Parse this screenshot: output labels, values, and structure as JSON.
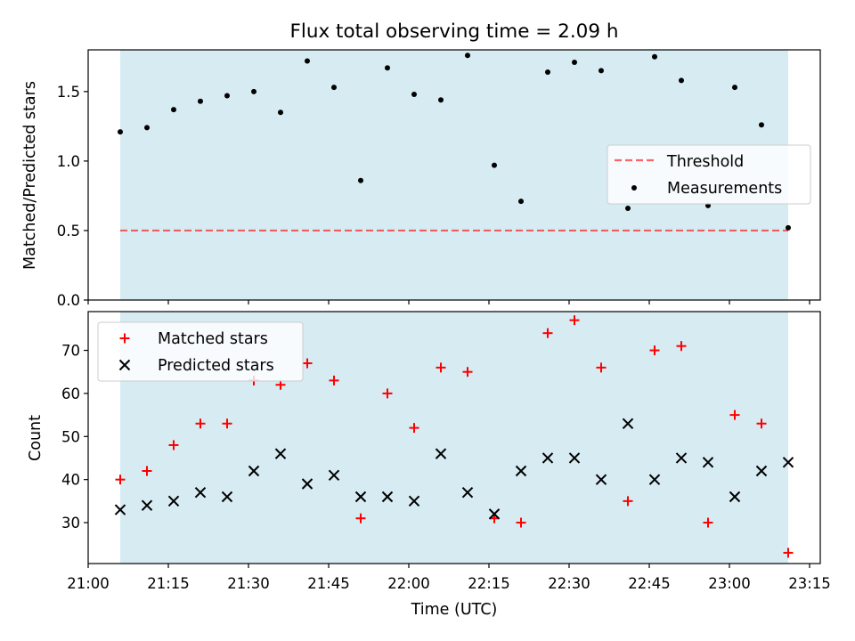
{
  "title": "Flux total observing time = 2.09 h",
  "colors": {
    "shade": "#add8e6",
    "threshold": "#ff0000",
    "measurements": "#000000",
    "matched": "#ff0000",
    "predicted": "#000000"
  },
  "chart_data": [
    {
      "type": "scatter",
      "panel": "top",
      "title": "Flux total observing time = 2.09 h",
      "ylabel": "Matched/Predicted stars",
      "ylim": [
        0.0,
        1.8
      ],
      "yticks": [
        0.0,
        0.5,
        1.0,
        1.5
      ],
      "ytick_labels": [
        "0.0",
        "0.5",
        "1.0",
        "1.5"
      ],
      "legend_position": "center-right",
      "shaded_span": {
        "start": "21:06",
        "end": "23:11"
      },
      "threshold": {
        "name": "Threshold",
        "value": 0.5,
        "style": "dashed"
      },
      "series": [
        {
          "name": "Measurements",
          "marker": "dot",
          "x": [
            "21:06",
            "21:11",
            "21:16",
            "21:21",
            "21:26",
            "21:31",
            "21:36",
            "21:41",
            "21:46",
            "21:51",
            "21:56",
            "22:01",
            "22:06",
            "22:11",
            "22:16",
            "22:21",
            "22:26",
            "22:31",
            "22:36",
            "22:41",
            "22:46",
            "22:51",
            "22:56",
            "23:01",
            "23:06",
            "23:11"
          ],
          "y": [
            1.21,
            1.24,
            1.37,
            1.43,
            1.47,
            1.5,
            1.35,
            1.72,
            1.53,
            0.86,
            1.67,
            1.48,
            1.44,
            1.76,
            0.97,
            0.71,
            1.64,
            1.71,
            1.65,
            0.66,
            1.75,
            1.58,
            0.68,
            1.53,
            1.26,
            0.52
          ]
        }
      ]
    },
    {
      "type": "scatter",
      "panel": "bottom",
      "xlabel": "Time (UTC)",
      "ylabel": "Count",
      "ylim": [
        20.5,
        79
      ],
      "yticks": [
        30,
        40,
        50,
        60,
        70
      ],
      "ytick_labels": [
        "30",
        "40",
        "50",
        "60",
        "70"
      ],
      "xlim": [
        "21:00",
        "23:17"
      ],
      "xticks": [
        "21:00",
        "21:15",
        "21:30",
        "21:45",
        "22:00",
        "22:15",
        "22:30",
        "22:45",
        "23:00",
        "23:15"
      ],
      "legend_position": "top-left",
      "shaded_span": {
        "start": "21:06",
        "end": "23:11"
      },
      "series": [
        {
          "name": "Matched stars",
          "marker": "plus",
          "x": [
            "21:06",
            "21:11",
            "21:16",
            "21:21",
            "21:26",
            "21:31",
            "21:36",
            "21:41",
            "21:46",
            "21:51",
            "21:56",
            "22:01",
            "22:06",
            "22:11",
            "22:16",
            "22:21",
            "22:26",
            "22:31",
            "22:36",
            "22:41",
            "22:46",
            "22:51",
            "22:56",
            "23:01",
            "23:06",
            "23:11"
          ],
          "y": [
            40,
            42,
            48,
            53,
            53,
            63,
            62,
            67,
            63,
            31,
            60,
            52,
            66,
            65,
            31,
            30,
            74,
            77,
            66,
            35,
            70,
            71,
            30,
            55,
            53,
            23
          ]
        },
        {
          "name": "Predicted stars",
          "marker": "x",
          "x": [
            "21:06",
            "21:11",
            "21:16",
            "21:21",
            "21:26",
            "21:31",
            "21:36",
            "21:41",
            "21:46",
            "21:51",
            "21:56",
            "22:01",
            "22:06",
            "22:11",
            "22:16",
            "22:21",
            "22:26",
            "22:31",
            "22:36",
            "22:41",
            "22:46",
            "22:51",
            "22:56",
            "23:01",
            "23:06",
            "23:11"
          ],
          "y": [
            33,
            34,
            35,
            37,
            36,
            42,
            46,
            39,
            41,
            36,
            36,
            35,
            46,
            37,
            32,
            42,
            45,
            45,
            40,
            53,
            40,
            45,
            44,
            36,
            42,
            44
          ]
        }
      ]
    }
  ]
}
